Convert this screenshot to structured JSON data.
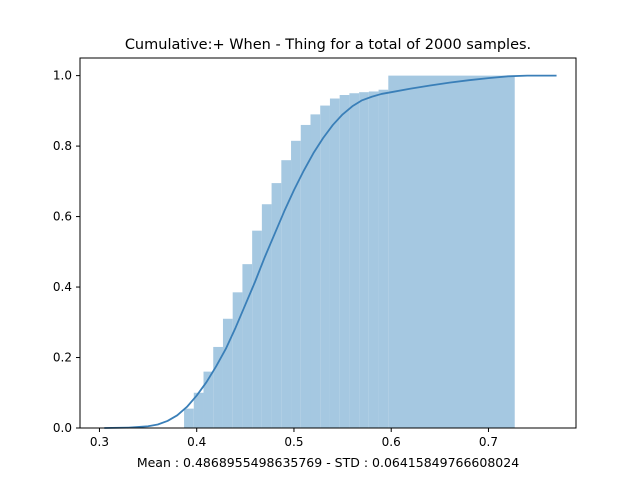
{
  "chart_data": {
    "type": "area",
    "title": "Cumulative:+ When - Thing  for a total of 2000 samples.",
    "xlabel": "Mean : 0.4868955498635769 - STD : 0.06415849766608024",
    "ylabel": "",
    "xlim": [
      0.28,
      0.79
    ],
    "ylim": [
      0.0,
      1.05
    ],
    "xticks": [
      {
        "value": 0.3,
        "label": "0.3"
      },
      {
        "value": 0.4,
        "label": "0.4"
      },
      {
        "value": 0.5,
        "label": "0.5"
      },
      {
        "value": 0.6,
        "label": "0.6"
      },
      {
        "value": 0.7,
        "label": "0.7"
      }
    ],
    "yticks": [
      {
        "value": 0.0,
        "label": "0.0"
      },
      {
        "value": 0.2,
        "label": "0.2"
      },
      {
        "value": 0.4,
        "label": "0.4"
      },
      {
        "value": 0.6,
        "label": "0.6"
      },
      {
        "value": 0.8,
        "label": "0.8"
      },
      {
        "value": 1.0,
        "label": "1.0"
      }
    ],
    "grid": false,
    "histogram": {
      "color": "#a5c8e1",
      "bin_edges": [
        0.387,
        0.397,
        0.407,
        0.417,
        0.427,
        0.437,
        0.447,
        0.457,
        0.467,
        0.477,
        0.487,
        0.497,
        0.507,
        0.517,
        0.527,
        0.537,
        0.547,
        0.557,
        0.567,
        0.577,
        0.587,
        0.597,
        0.727
      ],
      "values": [
        0.055,
        0.1,
        0.16,
        0.23,
        0.31,
        0.385,
        0.465,
        0.56,
        0.635,
        0.695,
        0.76,
        0.815,
        0.86,
        0.89,
        0.915,
        0.935,
        0.945,
        0.95,
        0.953,
        0.955,
        0.96,
        1.0
      ]
    },
    "curve": {
      "color": "#3a7fb8",
      "x": [
        0.305,
        0.33,
        0.35,
        0.36,
        0.37,
        0.38,
        0.39,
        0.4,
        0.41,
        0.42,
        0.43,
        0.44,
        0.45,
        0.46,
        0.47,
        0.48,
        0.49,
        0.5,
        0.51,
        0.52,
        0.53,
        0.54,
        0.55,
        0.56,
        0.57,
        0.58,
        0.59,
        0.6,
        0.62,
        0.64,
        0.66,
        0.68,
        0.7,
        0.72,
        0.74,
        0.77
      ],
      "y": [
        0.0,
        0.001,
        0.005,
        0.01,
        0.02,
        0.036,
        0.06,
        0.092,
        0.13,
        0.175,
        0.225,
        0.285,
        0.35,
        0.415,
        0.485,
        0.55,
        0.615,
        0.675,
        0.73,
        0.78,
        0.823,
        0.86,
        0.89,
        0.913,
        0.93,
        0.94,
        0.948,
        0.953,
        0.963,
        0.972,
        0.98,
        0.987,
        0.993,
        0.998,
        1.0,
        1.0
      ]
    }
  }
}
